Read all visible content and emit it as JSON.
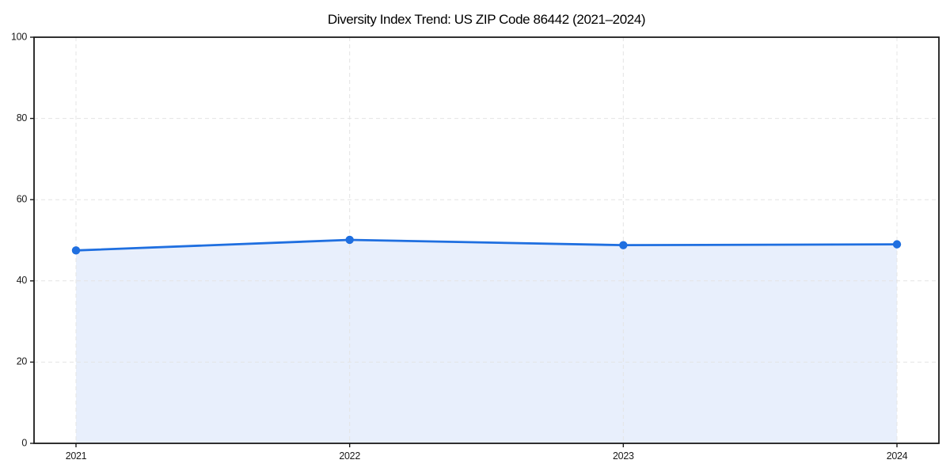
{
  "chart_data": {
    "type": "line",
    "title": "Diversity Index Trend: US ZIP Code 86442 (2021–2024)",
    "x": [
      2021,
      2022,
      2023,
      2024
    ],
    "series": [
      {
        "name": "Diversity Index",
        "values": [
          47.5,
          50.1,
          48.8,
          49.0
        ]
      }
    ],
    "xlabel": "",
    "ylabel": "",
    "ylim": [
      0,
      100
    ],
    "yticks": [
      0,
      20,
      40,
      60,
      80,
      100
    ],
    "xtick_labels": [
      "2021",
      "2022",
      "2023",
      "2024"
    ],
    "grid": true,
    "grid_style": "dashed",
    "legend": false,
    "area_fill_under_line": true,
    "colors": {
      "line": "#1f6fe0",
      "marker": "#1f6fe0",
      "area_fill": "#e8effc",
      "grid": "#e4e4e4",
      "spine": "#1a1a1a",
      "tick_label": "#1a1a1a",
      "background": "#ffffff"
    }
  }
}
